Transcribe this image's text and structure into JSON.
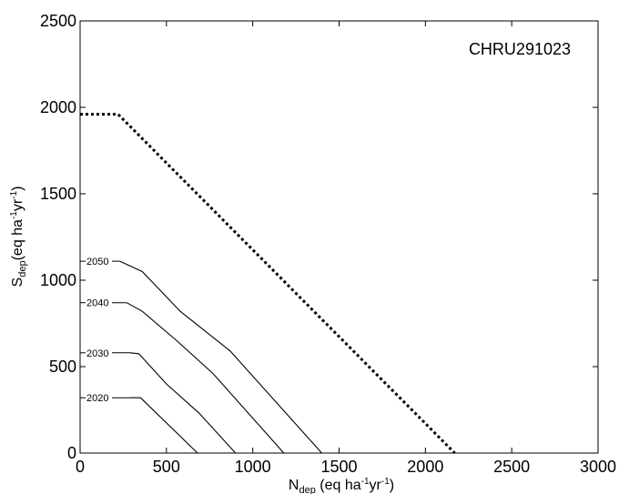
{
  "chart_data": {
    "type": "line",
    "annotation": "CHRU291023",
    "xlabel": {
      "main": "N",
      "sub": "dep",
      "rest": " (eq ha",
      "sup1": "-1",
      "mid": "yr",
      "sup2": "-1",
      "end": ")"
    },
    "ylabel": {
      "main": "S",
      "sub": "dep",
      "rest": "(eq ha",
      "sup1": "-1",
      "mid": "yr",
      "sup2": "-1",
      "end": ")"
    },
    "xlim": [
      0,
      3000
    ],
    "ylim": [
      0,
      2500
    ],
    "xticks": [
      0,
      500,
      1000,
      1500,
      2000,
      2500,
      3000
    ],
    "yticks": [
      0,
      500,
      1000,
      1500,
      2000,
      2500
    ],
    "grid": false,
    "series": [
      {
        "style": "dotted",
        "points": [
          [
            0,
            1960
          ],
          [
            220,
            1960
          ],
          [
            2170,
            0
          ]
        ]
      },
      {
        "name": "2050",
        "style": "solid",
        "points": [
          [
            230,
            1110
          ],
          [
            360,
            1050
          ],
          [
            580,
            820
          ],
          [
            870,
            590
          ],
          [
            1400,
            0
          ]
        ]
      },
      {
        "name": "2040",
        "style": "solid",
        "points": [
          [
            270,
            870
          ],
          [
            360,
            820
          ],
          [
            560,
            650
          ],
          [
            770,
            460
          ],
          [
            1180,
            0
          ]
        ]
      },
      {
        "name": "2030",
        "style": "solid",
        "points": [
          [
            290,
            580
          ],
          [
            340,
            575
          ],
          [
            500,
            400
          ],
          [
            690,
            230
          ],
          [
            900,
            0
          ]
        ]
      },
      {
        "name": "2020",
        "style": "solid",
        "points": [
          [
            290,
            320
          ],
          [
            350,
            320
          ],
          [
            680,
            0
          ]
        ]
      }
    ]
  }
}
